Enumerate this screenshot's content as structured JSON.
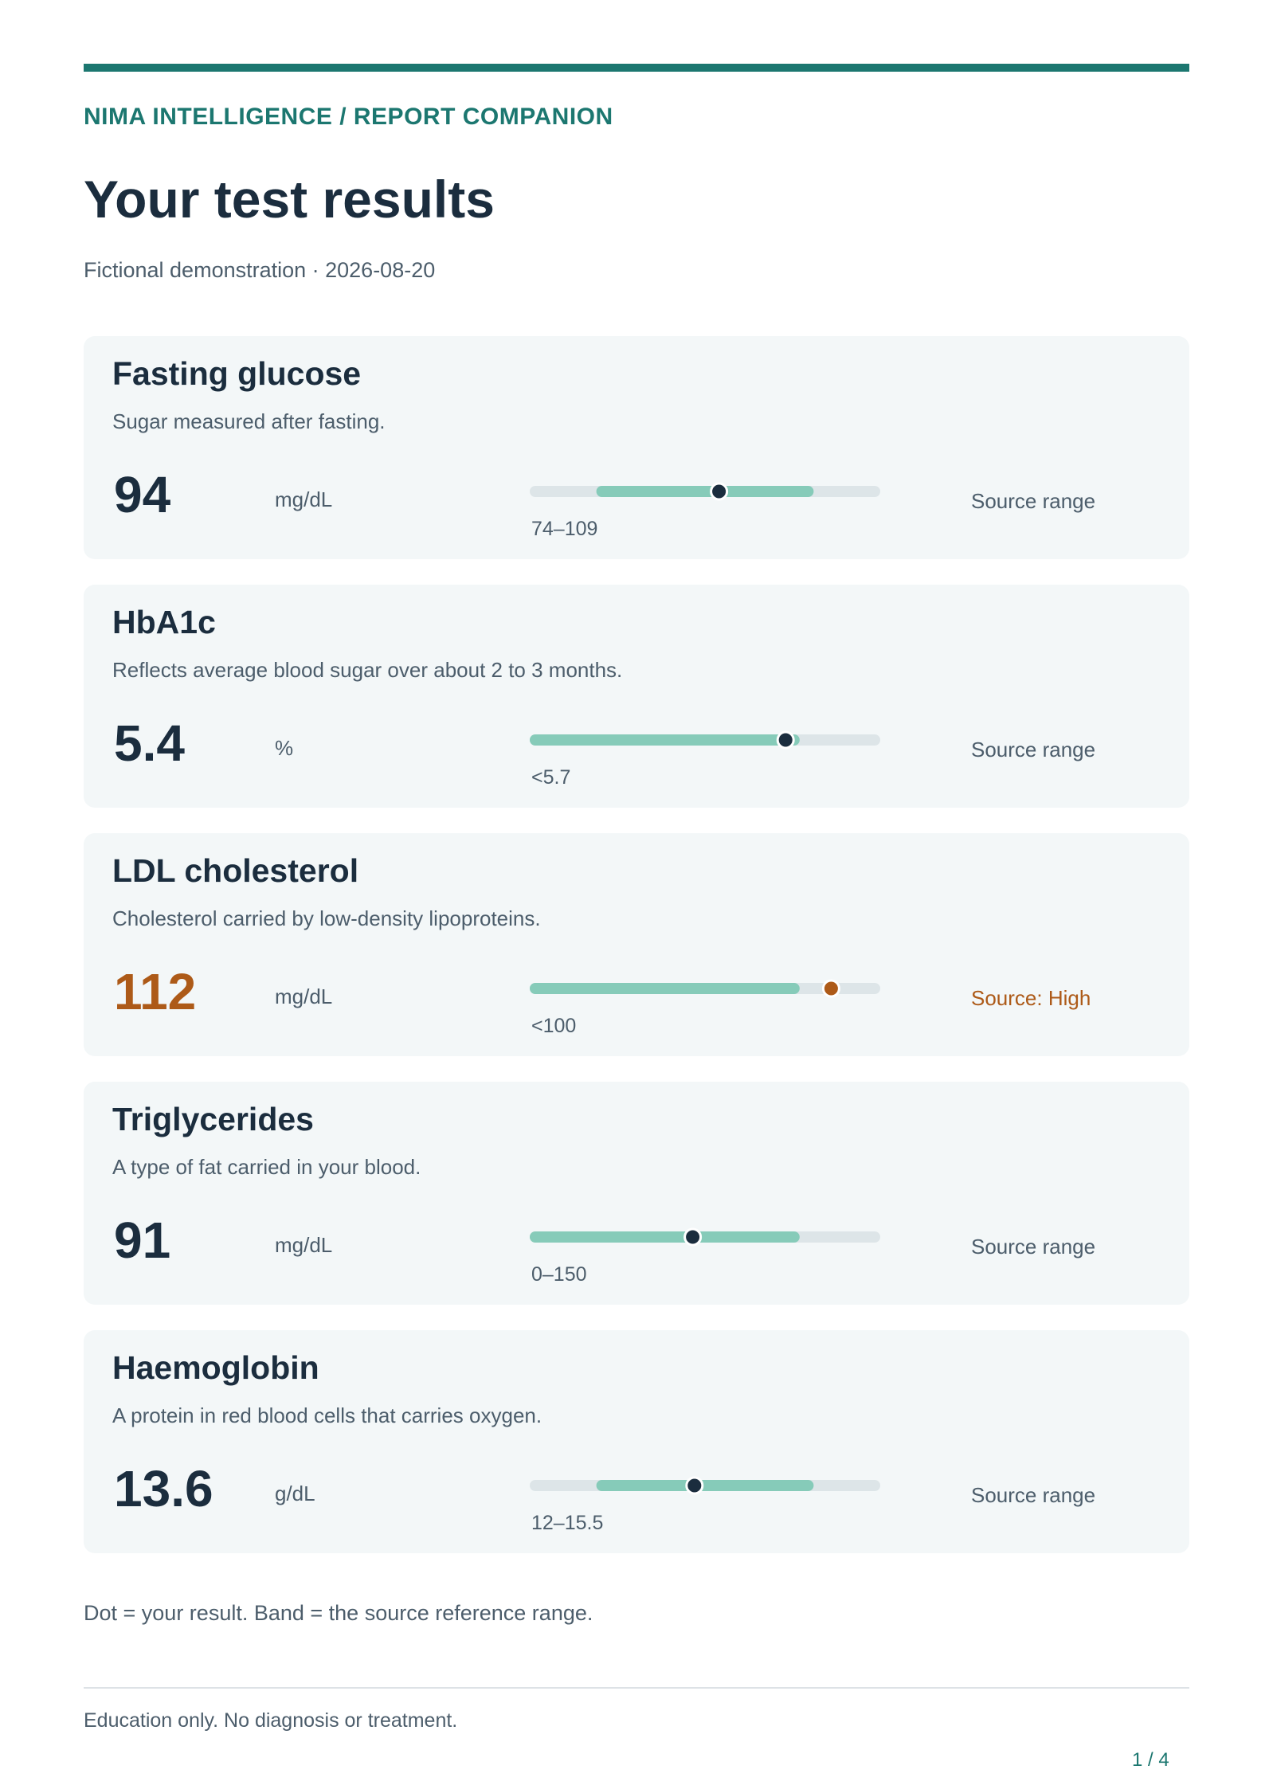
{
  "header": {
    "brand": "NIMA INTELLIGENCE / REPORT COMPANION",
    "title": "Your test results",
    "subtitle": "Fictional demonstration · 2026-08-20"
  },
  "colors": {
    "accent": "#1c7770",
    "text": "#1b2d3e",
    "muted": "#4c5d6b",
    "card_background": "#f3f7f8",
    "track": "#dde5e8",
    "band": "#86cbb9",
    "dot": "#1b2d3e",
    "flag": "#ad5a18"
  },
  "results": [
    {
      "name": "Fasting glucose",
      "description": "Sugar measured after fasting.",
      "value": "94",
      "unit": "mg/dL",
      "range_text": "74–109",
      "status": "Source range",
      "flagged": false,
      "band_start": 0.19,
      "band_end": 0.81,
      "dot_position": 0.54
    },
    {
      "name": "HbA1c",
      "description": "Reflects average blood sugar over about 2 to 3 months.",
      "value": "5.4",
      "unit": "%",
      "range_text": "<5.7",
      "status": "Source range",
      "flagged": false,
      "band_start": 0.0,
      "band_end": 0.77,
      "dot_position": 0.73
    },
    {
      "name": "LDL cholesterol",
      "description": "Cholesterol carried by low-density lipoproteins.",
      "value": "112",
      "unit": "mg/dL",
      "range_text": "<100",
      "status": "Source: High",
      "flagged": true,
      "band_start": 0.0,
      "band_end": 0.77,
      "dot_position": 0.86
    },
    {
      "name": "Triglycerides",
      "description": "A type of fat carried in your blood.",
      "value": "91",
      "unit": "mg/dL",
      "range_text": "0–150",
      "status": "Source range",
      "flagged": false,
      "band_start": 0.0,
      "band_end": 0.77,
      "dot_position": 0.465
    },
    {
      "name": "Haemoglobin",
      "description": "A protein in red blood cells that carries oxygen.",
      "value": "13.6",
      "unit": "g/dL",
      "range_text": "12–15.5",
      "status": "Source range",
      "flagged": false,
      "band_start": 0.19,
      "band_end": 0.81,
      "dot_position": 0.47
    }
  ],
  "legend_note": "Dot = your result. Band = the source reference range.",
  "footer": {
    "note": "Education only. No diagnosis or treatment.",
    "page_number": "1 / 4"
  }
}
